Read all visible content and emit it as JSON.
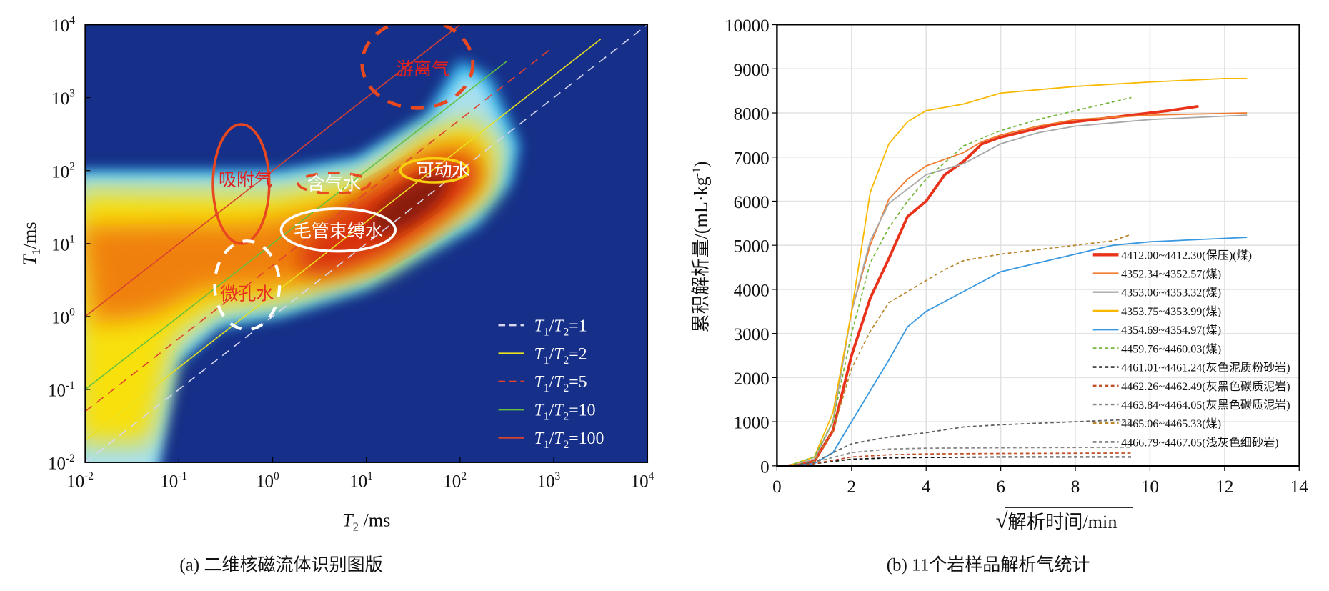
{
  "left": {
    "caption": "(a) 二维核磁流体识别图版",
    "x_label_main": "T",
    "x_label_sub": "2",
    "x_label_unit": " /ms",
    "y_label_main": "T",
    "y_label_sub": "1",
    "y_label_unit": "/ms",
    "tick_base": "10",
    "x_tick_exponents": [
      "-2",
      "-1",
      "0",
      "1",
      "2",
      "3",
      "4"
    ],
    "y_tick_exponents": [
      "-2",
      "-1",
      "0",
      "1",
      "2",
      "3",
      "4"
    ],
    "annotations": {
      "free_gas": "游离气",
      "adsorbed_gas": "吸附气",
      "gas_water": "含气水",
      "movable_water": "可动水",
      "capillary_water": "毛管束缚水",
      "micropore_water": "微孔水"
    },
    "ratio_lines": [
      {
        "label": "=1",
        "ratio": 1,
        "color": "#d8d8f0",
        "dashed": true,
        "x_end_log": 4
      },
      {
        "label": "=2",
        "ratio": 2,
        "color": "#e8e020",
        "dashed": false,
        "x_end_log": 3.5
      },
      {
        "label": "=5",
        "ratio": 5,
        "color": "#e04030",
        "dashed": true,
        "x_end_log": 3
      },
      {
        "label": "=10",
        "ratio": 10,
        "color": "#60c040",
        "dashed": false,
        "x_end_log": 2.5
      },
      {
        "label": "=100",
        "ratio": 100,
        "color": "#d84030",
        "dashed": false,
        "x_end_log": 2
      }
    ],
    "legend_prefix_t1": "T",
    "legend_sub_1": "1",
    "legend_slash": "/",
    "legend_sub_2": "2"
  },
  "chart_data": [
    {
      "type": "heatmap",
      "title": "二维核磁流体识别图版",
      "xlabel": "T2 /ms",
      "ylabel": "T1/ms",
      "xscale": "log",
      "yscale": "log",
      "xlim": [
        0.01,
        10000
      ],
      "ylim": [
        0.01,
        10000
      ],
      "legend_placement": "bottom-right"
    },
    {
      "type": "line",
      "title": "11个岩样品解析气统计",
      "caption": "(b) 11个岩样品解析气统计",
      "xlabel": "解析时间/min",
      "xlabel_sqrt": "√",
      "ylabel": "累积解析量/(mL·kg",
      "ylabel_sup": "-1",
      "ylabel_end": ")",
      "xlim": [
        0,
        14
      ],
      "ylim": [
        0,
        10000
      ],
      "x_ticks": [
        "0",
        "2",
        "4",
        "6",
        "8",
        "10",
        "12",
        "14"
      ],
      "y_ticks": [
        "0",
        "1000",
        "2000",
        "3000",
        "4000",
        "5000",
        "6000",
        "7000",
        "8000",
        "9000",
        "10000"
      ],
      "grid": true,
      "legend_placement": "bottom-right",
      "series": [
        {
          "name": "4412.00~4412.30(保压)(煤)",
          "color": "#e8321a",
          "width": 3.2,
          "dashed": false,
          "points": [
            [
              0.3,
              0
            ],
            [
              1,
              100
            ],
            [
              1.5,
              800
            ],
            [
              2,
              2500
            ],
            [
              2.5,
              3800
            ],
            [
              3,
              4700
            ],
            [
              3.5,
              5650
            ],
            [
              4,
              6000
            ],
            [
              4.5,
              6600
            ],
            [
              5,
              6900
            ],
            [
              5.5,
              7300
            ],
            [
              6,
              7450
            ],
            [
              7,
              7650
            ],
            [
              7.5,
              7750
            ],
            [
              8,
              7800
            ],
            [
              9,
              7900
            ],
            [
              10,
              8000
            ],
            [
              10.5,
              8050
            ],
            [
              11.3,
              8150
            ]
          ]
        },
        {
          "name": "4352.34~4352.57(煤)",
          "color": "#f07c30",
          "width": 1.5,
          "dashed": false,
          "points": [
            [
              0.3,
              0
            ],
            [
              1,
              150
            ],
            [
              1.5,
              1000
            ],
            [
              2,
              3500
            ],
            [
              2.5,
              5000
            ],
            [
              3,
              6050
            ],
            [
              3.5,
              6500
            ],
            [
              4,
              6800
            ],
            [
              5,
              7100
            ],
            [
              5.5,
              7350
            ],
            [
              6,
              7500
            ],
            [
              7,
              7700
            ],
            [
              8,
              7850
            ],
            [
              10,
              7950
            ],
            [
              12.6,
              8000
            ]
          ]
        },
        {
          "name": "4353.06~4353.32(煤)",
          "color": "#a8a8a8",
          "width": 1.5,
          "dashed": false,
          "points": [
            [
              0.3,
              0
            ],
            [
              1,
              150
            ],
            [
              1.5,
              1000
            ],
            [
              2,
              3500
            ],
            [
              2.5,
              5100
            ],
            [
              3,
              5950
            ],
            [
              4,
              6600
            ],
            [
              5,
              6850
            ],
            [
              6,
              7300
            ],
            [
              7,
              7550
            ],
            [
              8,
              7700
            ],
            [
              10,
              7850
            ],
            [
              12.6,
              7950
            ]
          ]
        },
        {
          "name": "4353.75~4353.99(煤)",
          "color": "#f8b800",
          "width": 1.5,
          "dashed": false,
          "points": [
            [
              0.3,
              0
            ],
            [
              1,
              200
            ],
            [
              1.5,
              1200
            ],
            [
              2,
              3500
            ],
            [
              2.5,
              6200
            ],
            [
              3,
              7300
            ],
            [
              3.5,
              7800
            ],
            [
              4,
              8050
            ],
            [
              5,
              8200
            ],
            [
              6,
              8450
            ],
            [
              8,
              8600
            ],
            [
              10,
              8700
            ],
            [
              12,
              8780
            ],
            [
              12.6,
              8780
            ]
          ]
        },
        {
          "name": "4354.69~4354.97(煤)",
          "color": "#3898e0",
          "width": 1.5,
          "dashed": false,
          "points": [
            [
              0.3,
              0
            ],
            [
              1,
              50
            ],
            [
              1.5,
              300
            ],
            [
              2,
              1000
            ],
            [
              2.5,
              1700
            ],
            [
              3,
              2400
            ],
            [
              3.5,
              3150
            ],
            [
              4,
              3500
            ],
            [
              5,
              3950
            ],
            [
              6,
              4400
            ],
            [
              7,
              4600
            ],
            [
              8,
              4800
            ],
            [
              9,
              5000
            ],
            [
              10,
              5080
            ],
            [
              12.6,
              5180
            ]
          ]
        },
        {
          "name": "4459.76~4460.03(煤)",
          "color": "#78b840",
          "width": 1.5,
          "dashed": true,
          "points": [
            [
              0.3,
              0
            ],
            [
              1,
              200
            ],
            [
              1.5,
              1000
            ],
            [
              2,
              3000
            ],
            [
              2.5,
              4600
            ],
            [
              3,
              5400
            ],
            [
              3.5,
              6000
            ],
            [
              4,
              6500
            ],
            [
              5,
              7250
            ],
            [
              6,
              7600
            ],
            [
              7,
              7850
            ],
            [
              8,
              8050
            ],
            [
              9,
              8250
            ],
            [
              9.5,
              8350
            ]
          ]
        },
        {
          "name": "4461.01~4461.24(灰色泥质粉砂岩)",
          "color": "#111111",
          "width": 1.5,
          "dashed": true,
          "points": [
            [
              0.3,
              0
            ],
            [
              1,
              50
            ],
            [
              2,
              150
            ],
            [
              3,
              180
            ],
            [
              4,
              190
            ],
            [
              6,
              200
            ],
            [
              9.5,
              200
            ]
          ]
        },
        {
          "name": "4462.26~4462.49(灰黑色碳质泥岩)",
          "color": "#c0502a",
          "width": 1.5,
          "dashed": true,
          "points": [
            [
              0.3,
              0
            ],
            [
              1,
              50
            ],
            [
              2,
              200
            ],
            [
              3,
              250
            ],
            [
              4,
              270
            ],
            [
              6,
              280
            ],
            [
              9.5,
              290
            ]
          ]
        },
        {
          "name": "4463.84~4464.05(灰黑色碳质泥岩)",
          "color": "#888888",
          "width": 1.5,
          "dashed": true,
          "points": [
            [
              0.3,
              0
            ],
            [
              1,
              80
            ],
            [
              2,
              300
            ],
            [
              3,
              380
            ],
            [
              4,
              400
            ],
            [
              6,
              410
            ],
            [
              9.5,
              420
            ]
          ]
        },
        {
          "name": "4465.06~4465.33(煤)",
          "color": "#b8862a",
          "width": 1.5,
          "dashed": true,
          "points": [
            [
              0.3,
              0
            ],
            [
              1,
              100
            ],
            [
              1.5,
              800
            ],
            [
              2,
              2200
            ],
            [
              2.5,
              3050
            ],
            [
              3,
              3700
            ],
            [
              3.5,
              3950
            ],
            [
              4,
              4200
            ],
            [
              4.5,
              4450
            ],
            [
              5,
              4650
            ],
            [
              6,
              4800
            ],
            [
              7,
              4900
            ],
            [
              8,
              5000
            ],
            [
              9,
              5100
            ],
            [
              9.5,
              5250
            ]
          ]
        },
        {
          "name": "4466.79~4467.05(浅灰色细砂岩)",
          "color": "#606060",
          "width": 1.5,
          "dashed": true,
          "points": [
            [
              0.3,
              0
            ],
            [
              1,
              80
            ],
            [
              1.5,
              300
            ],
            [
              2,
              500
            ],
            [
              2.5,
              580
            ],
            [
              3,
              650
            ],
            [
              4,
              750
            ],
            [
              5,
              880
            ],
            [
              6,
              930
            ],
            [
              8,
              1000
            ],
            [
              9.5,
              1050
            ]
          ]
        }
      ]
    }
  ]
}
